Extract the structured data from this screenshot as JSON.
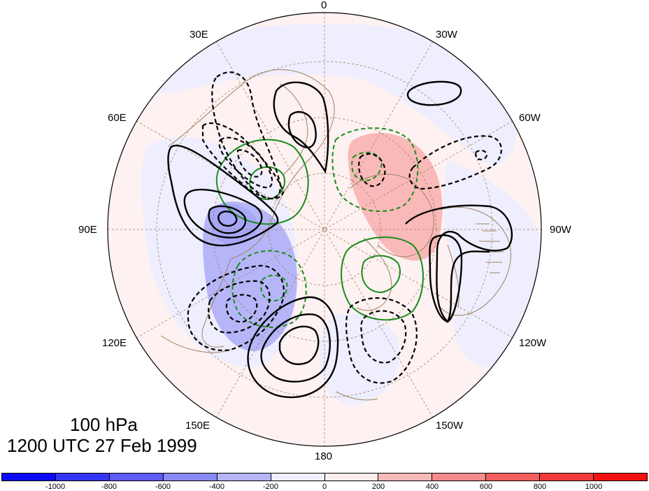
{
  "map": {
    "level": "100 hPa",
    "time": "1200 UTC 27 Feb 1999",
    "longitude_labels": [
      "0",
      "30W",
      "60W",
      "90W",
      "120W",
      "150W",
      "180",
      "150E",
      "120E",
      "90E",
      "60E",
      "30E"
    ]
  },
  "colorbar": {
    "colors": [
      "#0b0bf6",
      "#3535f6",
      "#5c5cf5",
      "#8a8af6",
      "#b5b5f8",
      "#eeeefe",
      "#fdeeee",
      "#f9b9b9",
      "#f68b8b",
      "#f46060",
      "#f33a3a",
      "#f21111"
    ],
    "tick_labels": [
      "-1000",
      "-800",
      "-600",
      "-400",
      "-200",
      "0",
      "200",
      "400",
      "600",
      "800",
      "1000"
    ]
  },
  "colors": {
    "positive_contour": "#000000",
    "negative_contour": "#000000",
    "green_contour": "#1a8c1a",
    "coastline": "#a08060",
    "grid": "#a08060"
  }
}
